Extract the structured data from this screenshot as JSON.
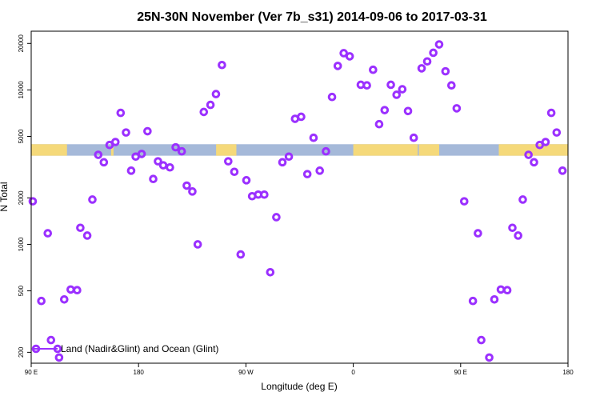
{
  "chart_data": {
    "type": "scatter",
    "title": "25N-30N November (Ver 7b_s31)   2014-09-06 to 2017-03-31",
    "xlabel": "Longitude (deg E)",
    "ylabel": "N Total",
    "x_scale": "linear",
    "y_scale": "log",
    "xlim": [
      90,
      540
    ],
    "ylim": [
      170,
      24000
    ],
    "x_ticks": [
      {
        "value": 90,
        "label": "90 E"
      },
      {
        "value": 180,
        "label": "180"
      },
      {
        "value": 270,
        "label": "90 W"
      },
      {
        "value": 360,
        "label": "0"
      },
      {
        "value": 450,
        "label": "90 E"
      },
      {
        "value": 540,
        "label": "180"
      }
    ],
    "y_ticks": [
      {
        "value": 200,
        "label": "200"
      },
      {
        "value": 500,
        "label": "500"
      },
      {
        "value": 1000,
        "label": "1000"
      },
      {
        "value": 2000,
        "label": "2000"
      },
      {
        "value": 5000,
        "label": "5000"
      },
      {
        "value": 10000,
        "label": "10000"
      },
      {
        "value": 20000,
        "label": "20000"
      }
    ],
    "land_ocean_strip": {
      "y_range": [
        3750,
        4450
      ],
      "ocean_color": "#a5b9d9",
      "land_color": "#f5d97a",
      "land_spans_lon": [
        [
          90,
          120
        ],
        [
          157,
          159
        ],
        [
          245,
          262
        ],
        [
          360,
          414
        ],
        [
          415,
          432
        ],
        [
          482,
          540
        ]
      ]
    },
    "legend": {
      "position": "bottom-left",
      "label": "Land (Nadir&Glint) and Ocean (Glint)"
    },
    "series": [
      {
        "name": "Land (Nadir&Glint) and Ocean (Glint)",
        "color": "#9b30ff",
        "marker": "open-circle",
        "points": [
          {
            "x": 91.3,
            "y": 1900
          },
          {
            "x": 98.5,
            "y": 430
          },
          {
            "x": 103.9,
            "y": 1180
          },
          {
            "x": 106.6,
            "y": 240
          },
          {
            "x": 113.4,
            "y": 185
          },
          {
            "x": 117.7,
            "y": 440
          },
          {
            "x": 123.1,
            "y": 510
          },
          {
            "x": 128.5,
            "y": 505
          },
          {
            "x": 131.2,
            "y": 1280
          },
          {
            "x": 137.0,
            "y": 1140
          },
          {
            "x": 141.3,
            "y": 1950
          },
          {
            "x": 146.2,
            "y": 3800
          },
          {
            "x": 150.9,
            "y": 3400
          },
          {
            "x": 155.7,
            "y": 4400
          },
          {
            "x": 160.6,
            "y": 4600
          },
          {
            "x": 165.0,
            "y": 7100
          },
          {
            "x": 169.5,
            "y": 5300
          },
          {
            "x": 173.8,
            "y": 3000
          },
          {
            "x": 177.6,
            "y": 3700
          },
          {
            "x": 182.6,
            "y": 3850
          },
          {
            "x": 187.5,
            "y": 5400
          },
          {
            "x": 192.3,
            "y": 2650
          },
          {
            "x": 196.3,
            "y": 3450
          },
          {
            "x": 200.7,
            "y": 3250
          },
          {
            "x": 206.3,
            "y": 3150
          },
          {
            "x": 211.1,
            "y": 4250
          },
          {
            "x": 216.2,
            "y": 4000
          },
          {
            "x": 220.4,
            "y": 2400
          },
          {
            "x": 225.1,
            "y": 2200
          },
          {
            "x": 229.6,
            "y": 1000
          },
          {
            "x": 234.7,
            "y": 7200
          },
          {
            "x": 240.3,
            "y": 8000
          },
          {
            "x": 244.9,
            "y": 9400
          },
          {
            "x": 249.9,
            "y": 14500
          },
          {
            "x": 255.2,
            "y": 3450
          },
          {
            "x": 260.3,
            "y": 2950
          },
          {
            "x": 265.6,
            "y": 860
          },
          {
            "x": 270.4,
            "y": 2600
          },
          {
            "x": 275.2,
            "y": 2050
          },
          {
            "x": 280.3,
            "y": 2100
          },
          {
            "x": 285.4,
            "y": 2100
          },
          {
            "x": 290.4,
            "y": 660
          },
          {
            "x": 295.5,
            "y": 1500
          },
          {
            "x": 300.6,
            "y": 3400
          },
          {
            "x": 306.0,
            "y": 3700
          },
          {
            "x": 311.2,
            "y": 6500
          },
          {
            "x": 316.3,
            "y": 6700
          },
          {
            "x": 321.5,
            "y": 2850
          },
          {
            "x": 326.7,
            "y": 4900
          },
          {
            "x": 331.9,
            "y": 3000
          },
          {
            "x": 337.1,
            "y": 4000
          },
          {
            "x": 342.2,
            "y": 9000
          },
          {
            "x": 347.0,
            "y": 14300
          },
          {
            "x": 352.0,
            "y": 17300
          },
          {
            "x": 357.0,
            "y": 16500
          },
          {
            "x": 366.3,
            "y": 10800
          },
          {
            "x": 371.4,
            "y": 10700
          },
          {
            "x": 376.6,
            "y": 13500
          },
          {
            "x": 381.7,
            "y": 6000
          },
          {
            "x": 386.3,
            "y": 7400
          },
          {
            "x": 391.5,
            "y": 10800
          },
          {
            "x": 396.3,
            "y": 9300
          },
          {
            "x": 401.1,
            "y": 10100
          },
          {
            "x": 405.9,
            "y": 7300
          },
          {
            "x": 410.7,
            "y": 4900
          },
          {
            "x": 417.3,
            "y": 13800
          },
          {
            "x": 422.0,
            "y": 15300
          },
          {
            "x": 427.1,
            "y": 17400
          },
          {
            "x": 432.0,
            "y": 19700
          },
          {
            "x": 437.3,
            "y": 13200
          },
          {
            "x": 442.3,
            "y": 10700
          },
          {
            "x": 446.7,
            "y": 7600
          },
          {
            "x": 453.0,
            "y": 1900
          },
          {
            "x": 460.3,
            "y": 430
          },
          {
            "x": 464.5,
            "y": 1180
          },
          {
            "x": 467.3,
            "y": 240
          },
          {
            "x": 474.0,
            "y": 185
          },
          {
            "x": 478.3,
            "y": 440
          },
          {
            "x": 483.7,
            "y": 510
          },
          {
            "x": 489.1,
            "y": 505
          },
          {
            "x": 493.4,
            "y": 1280
          },
          {
            "x": 498.2,
            "y": 1140
          },
          {
            "x": 502.1,
            "y": 1950
          },
          {
            "x": 506.9,
            "y": 3800
          },
          {
            "x": 511.5,
            "y": 3400
          },
          {
            "x": 516.3,
            "y": 4400
          },
          {
            "x": 521.2,
            "y": 4600
          },
          {
            "x": 526.0,
            "y": 7100
          },
          {
            "x": 530.5,
            "y": 5300
          },
          {
            "x": 535.4,
            "y": 3000
          }
        ]
      }
    ]
  }
}
